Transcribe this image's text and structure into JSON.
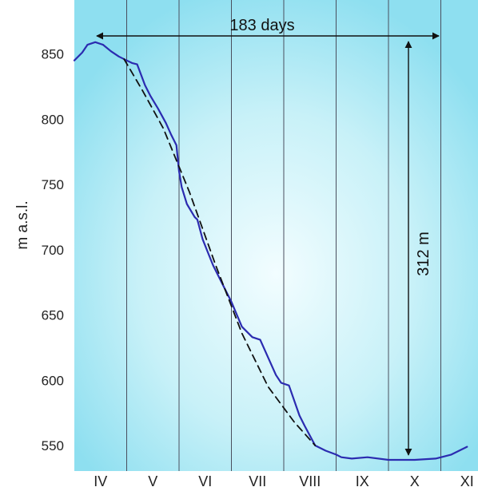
{
  "chart_data": {
    "type": "line",
    "ylabel": "m a.s.l.",
    "ylim": [
      528,
      876
    ],
    "yticks": [
      550,
      600,
      650,
      700,
      750,
      800,
      850
    ],
    "months": [
      "IV",
      "V",
      "VI",
      "VII",
      "VIII",
      "IX",
      "X",
      "XI"
    ],
    "annotations": {
      "duration": "183 days",
      "drop": "312 m"
    },
    "series": [
      {
        "style": "solid",
        "color": "#2b2bb0",
        "x": [
          0,
          0.15,
          0.25,
          0.4,
          0.55,
          0.7,
          0.85,
          1.0,
          1.1,
          1.2,
          1.35,
          1.45,
          1.6,
          1.75,
          1.85,
          1.95,
          2.0,
          2.05,
          2.15,
          2.3,
          2.35,
          2.45,
          2.55,
          2.65,
          2.8,
          3.0,
          3.2,
          3.4,
          3.55,
          3.85,
          3.95,
          4.1,
          4.3,
          4.4,
          4.6,
          4.8,
          5.0,
          5.1,
          5.3,
          5.6,
          6.0,
          6.5,
          6.9,
          7.2,
          7.5
        ],
        "y": [
          845,
          851,
          857,
          859,
          857,
          852,
          848,
          845,
          843,
          842,
          826,
          818,
          808,
          797,
          788,
          780,
          760,
          748,
          735,
          725,
          723,
          708,
          698,
          688,
          676,
          660,
          641,
          633,
          631,
          604,
          598,
          596,
          573,
          565,
          550,
          546,
          543,
          541,
          540,
          541,
          539,
          539,
          540,
          543,
          549
        ]
      },
      {
        "style": "dashed",
        "color": "#111111",
        "x": [
          0.95,
          1.3,
          1.7,
          2.2,
          2.7,
          3.2,
          3.7,
          4.2,
          4.6
        ],
        "y": [
          846,
          822,
          793,
          744,
          688,
          636,
          595,
          568,
          550
        ]
      }
    ]
  }
}
